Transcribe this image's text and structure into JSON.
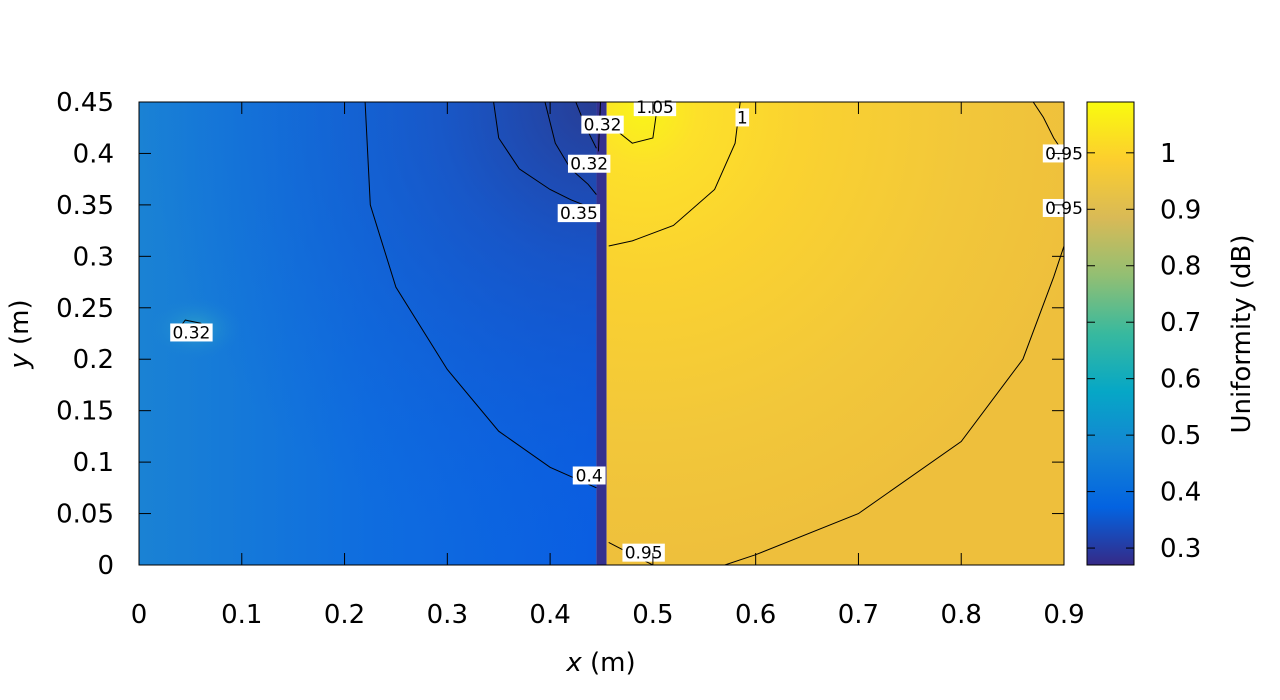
{
  "chart_data": {
    "type": "heatmap",
    "xlabel": {
      "var": "x",
      "unit": "(m)"
    },
    "ylabel": {
      "var": "y",
      "unit": "(m)"
    },
    "colorbar_label": "Uniformity (dB)",
    "xlim": [
      0,
      0.9
    ],
    "ylim": [
      0,
      0.45
    ],
    "clim": [
      0.27,
      1.09
    ],
    "colormap": "parula",
    "x_ticks": [
      {
        "value": 0,
        "label": "0"
      },
      {
        "value": 0.1,
        "label": "0.1"
      },
      {
        "value": 0.2,
        "label": "0.2"
      },
      {
        "value": 0.3,
        "label": "0.3"
      },
      {
        "value": 0.4,
        "label": "0.4"
      },
      {
        "value": 0.5,
        "label": "0.5"
      },
      {
        "value": 0.6,
        "label": "0.6"
      },
      {
        "value": 0.7,
        "label": "0.7"
      },
      {
        "value": 0.8,
        "label": "0.8"
      },
      {
        "value": 0.9,
        "label": "0.9"
      }
    ],
    "y_ticks": [
      {
        "value": 0,
        "label": "0"
      },
      {
        "value": 0.05,
        "label": "0.05"
      },
      {
        "value": 0.1,
        "label": "0.1"
      },
      {
        "value": 0.15,
        "label": "0.15"
      },
      {
        "value": 0.2,
        "label": "0.2"
      },
      {
        "value": 0.25,
        "label": "0.25"
      },
      {
        "value": 0.3,
        "label": "0.3"
      },
      {
        "value": 0.35,
        "label": "0.35"
      },
      {
        "value": 0.4,
        "label": "0.4"
      },
      {
        "value": 0.45,
        "label": "0.45"
      }
    ],
    "colorbar_ticks": [
      {
        "value": 0.3,
        "label": "0.3"
      },
      {
        "value": 0.4,
        "label": "0.4"
      },
      {
        "value": 0.5,
        "label": "0.5"
      },
      {
        "value": 0.6,
        "label": "0.6"
      },
      {
        "value": 0.7,
        "label": "0.7"
      },
      {
        "value": 0.8,
        "label": "0.8"
      },
      {
        "value": 0.9,
        "label": "0.9"
      },
      {
        "value": 1,
        "label": "1"
      }
    ],
    "regions": [
      {
        "name": "",
        "x_range": [
          0,
          0.445
        ],
        "value_range": [
          0.36,
          0.42
        ]
      },
      {
        "name": "",
        "x_range": [
          0.445,
          0.455
        ],
        "value": 0.28
      },
      {
        "name": "",
        "x_range": [
          0.455,
          0.9
        ],
        "value_range": [
          0.93,
          1.08
        ]
      }
    ],
    "contours": [
      {
        "level": "0.32",
        "points": [
          [
            0.447,
            0.402
          ],
          [
            0.449,
            0.45
          ]
        ]
      },
      {
        "level": "0.325",
        "points": [
          [
            0.425,
            0.45
          ],
          [
            0.435,
            0.425
          ],
          [
            0.445,
            0.405
          ]
        ]
      },
      {
        "level": "0.35",
        "points": [
          [
            0.395,
            0.45
          ],
          [
            0.405,
            0.41
          ],
          [
            0.42,
            0.385
          ],
          [
            0.437,
            0.37
          ],
          [
            0.445,
            0.36
          ]
        ]
      },
      {
        "level": "0.35",
        "points": [
          [
            0.345,
            0.45
          ],
          [
            0.35,
            0.415
          ],
          [
            0.37,
            0.385
          ],
          [
            0.4,
            0.365
          ],
          [
            0.42,
            0.355
          ],
          [
            0.445,
            0.345
          ]
        ]
      },
      {
        "level": "0.4",
        "points": [
          [
            0.22,
            0.45
          ],
          [
            0.225,
            0.35
          ],
          [
            0.25,
            0.27
          ],
          [
            0.3,
            0.19
          ],
          [
            0.35,
            0.13
          ],
          [
            0.4,
            0.095
          ],
          [
            0.445,
            0.075
          ]
        ]
      },
      {
        "level": "0.325",
        "points": [
          [
            0.035,
            0.225
          ],
          [
            0.045,
            0.238
          ],
          [
            0.06,
            0.235
          ],
          [
            0.07,
            0.225
          ],
          [
            0.055,
            0.218
          ],
          [
            0.035,
            0.225
          ]
        ]
      },
      {
        "level": "1.05",
        "points": [
          [
            0.455,
            0.43
          ],
          [
            0.48,
            0.41
          ],
          [
            0.5,
            0.415
          ],
          [
            0.505,
            0.45
          ]
        ]
      },
      {
        "level": "1",
        "points": [
          [
            0.457,
            0.31
          ],
          [
            0.48,
            0.315
          ],
          [
            0.52,
            0.33
          ],
          [
            0.56,
            0.365
          ],
          [
            0.58,
            0.41
          ],
          [
            0.585,
            0.45
          ]
        ]
      },
      {
        "level": "0.95",
        "points": [
          [
            0.457,
            0.022
          ],
          [
            0.48,
            0.01
          ],
          [
            0.5,
            0
          ]
        ]
      },
      {
        "level": "0.95",
        "points": [
          [
            0.57,
            0
          ],
          [
            0.6,
            0.01
          ],
          [
            0.7,
            0.05
          ],
          [
            0.8,
            0.12
          ],
          [
            0.86,
            0.2
          ],
          [
            0.89,
            0.28
          ],
          [
            0.9,
            0.31
          ]
        ]
      },
      {
        "level": "0.95",
        "points": [
          [
            0.87,
            0.45
          ],
          [
            0.88,
            0.435
          ],
          [
            0.89,
            0.415
          ],
          [
            0.9,
            0.4
          ]
        ]
      }
    ],
    "contour_labels": [
      {
        "text": "0.32",
        "x": 0.451,
        "y": 0.428
      },
      {
        "text": "0.32",
        "x": 0.438,
        "y": 0.39
      },
      {
        "text": "0.35",
        "x": 0.428,
        "y": 0.342
      },
      {
        "text": "0.4",
        "x": 0.438,
        "y": 0.087
      },
      {
        "text": "0.32",
        "x": 0.051,
        "y": 0.226
      },
      {
        "text": "1.05",
        "x": 0.502,
        "y": 0.445
      },
      {
        "text": "1",
        "x": 0.587,
        "y": 0.435
      },
      {
        "text": "0.95",
        "x": 0.491,
        "y": 0.012
      },
      {
        "text": "0.95",
        "x": 0.9,
        "y": 0.4
      },
      {
        "text": "0.95",
        "x": 0.9,
        "y": 0.347
      }
    ]
  }
}
